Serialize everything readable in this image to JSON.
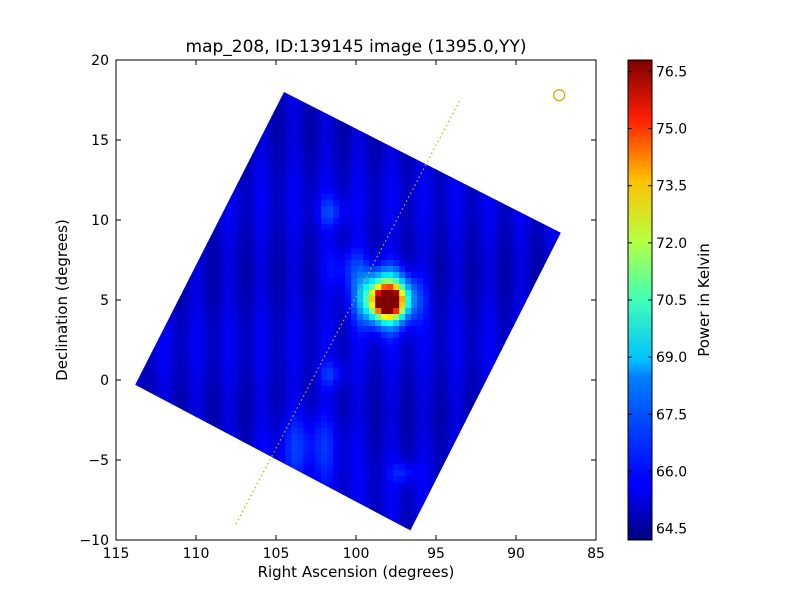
{
  "chart_data": {
    "type": "heatmap",
    "title": "map_208, ID:139145 image (1395.0,YY)",
    "xlabel": "Right Ascension (degrees)",
    "ylabel": "Declination (degrees)",
    "xlim": [
      115,
      85
    ],
    "ylim": [
      -10,
      20
    ],
    "x_ticks": [
      115,
      110,
      105,
      100,
      95,
      90,
      85
    ],
    "x_tick_labels": [
      "115",
      "110",
      "105",
      "100",
      "95",
      "90",
      "85"
    ],
    "y_ticks": [
      -10,
      -5,
      0,
      5,
      10,
      15,
      20
    ],
    "y_tick_labels": [
      "−10",
      "−5",
      "0",
      "5",
      "10",
      "15",
      "20"
    ],
    "grid": false,
    "map_corners": [
      [
        104.5,
        18.0
      ],
      [
        87.2,
        9.2
      ],
      [
        96.6,
        -9.4
      ],
      [
        113.8,
        -0.3
      ]
    ],
    "background_level": 65.2,
    "features": [
      {
        "ra": 98.0,
        "dec": 4.9,
        "peak": 76.5,
        "sigma": 0.55
      },
      {
        "ra": 98.1,
        "dec": 5.1,
        "peak": 73.0,
        "sigma": 1.1
      },
      {
        "ra": 100.5,
        "dec": 7.0,
        "peak": 66.4,
        "sigma": 1.0
      },
      {
        "ra": 101.5,
        "dec": 10.5,
        "peak": 66.3,
        "sigma": 0.7
      },
      {
        "ra": 101.5,
        "dec": 0.3,
        "peak": 66.2,
        "sigma": 0.6
      },
      {
        "ra": 103.0,
        "dec": -4.0,
        "peak": 66.4,
        "sigma": 1.6
      },
      {
        "ra": 97.0,
        "dec": -5.8,
        "peak": 66.3,
        "sigma": 0.5
      }
    ],
    "dotted_line": {
      "start": [
        107.5,
        -9.0
      ],
      "end": [
        93.5,
        17.5
      ],
      "color": "#c8b400"
    },
    "circle_marker": {
      "ra": 87.3,
      "dec": 17.8,
      "color": "#c8b400"
    },
    "colorbar": {
      "label": "Power in Kelvin",
      "range": [
        64.2,
        76.8
      ],
      "ticks": [
        64.5,
        66.0,
        67.5,
        69.0,
        70.5,
        72.0,
        73.5,
        75.0,
        76.5
      ],
      "tick_labels": [
        "64.5",
        "66.0",
        "67.5",
        "69.0",
        "70.5",
        "72.0",
        "73.5",
        "75.0",
        "76.5"
      ],
      "colormap": "jet"
    }
  }
}
